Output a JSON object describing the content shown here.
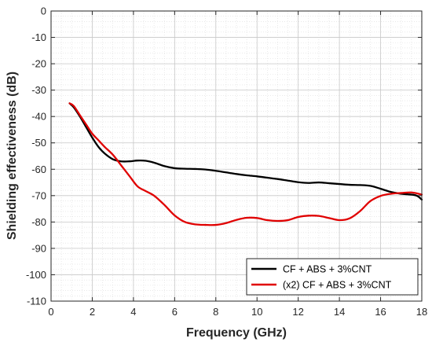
{
  "chart_data": {
    "type": "line",
    "title": "",
    "xlabel": "Frequency (GHz)",
    "ylabel": "Shielding effectiveness (dB)",
    "xlim": [
      0,
      18
    ],
    "ylim": [
      -110,
      0
    ],
    "xticks": [
      0,
      2,
      4,
      6,
      8,
      10,
      12,
      14,
      16,
      18
    ],
    "yticks": [
      0,
      -10,
      -20,
      -30,
      -40,
      -50,
      -60,
      -70,
      -80,
      -90,
      -100,
      -110
    ],
    "grid": true,
    "minor_grid": true,
    "legend_position": "bottom-right",
    "series": [
      {
        "name": "CF + ABS + 3%CNT",
        "color": "#000000",
        "x": [
          0.9,
          1.1,
          1.4,
          1.7,
          2.0,
          2.3,
          2.6,
          3.0,
          3.4,
          3.8,
          4.2,
          4.6,
          5.0,
          5.5,
          6.0,
          6.5,
          7.0,
          7.5,
          8.0,
          8.5,
          9.0,
          9.5,
          10.0,
          10.5,
          11.0,
          11.5,
          12.0,
          12.5,
          13.0,
          13.5,
          14.0,
          14.5,
          15.0,
          15.5,
          16.0,
          16.5,
          17.0,
          17.3,
          17.6,
          17.8,
          18.0
        ],
        "y": [
          -35,
          -36.5,
          -40,
          -44,
          -48,
          -51.5,
          -54,
          -56.2,
          -57,
          -57,
          -56.7,
          -56.8,
          -57.5,
          -58.8,
          -59.6,
          -59.8,
          -59.9,
          -60.1,
          -60.6,
          -61.2,
          -61.8,
          -62.3,
          -62.7,
          -63.2,
          -63.7,
          -64.3,
          -64.9,
          -65.2,
          -65,
          -65.3,
          -65.6,
          -65.9,
          -66,
          -66.3,
          -67.4,
          -68.6,
          -69.3,
          -69.5,
          -69.7,
          -70.2,
          -71.5
        ]
      },
      {
        "name": "(x2) CF + ABS + 3%CNT",
        "color": "#e00000",
        "x": [
          0.9,
          1.1,
          1.4,
          1.7,
          2.0,
          2.3,
          2.6,
          3.0,
          3.4,
          3.8,
          4.2,
          4.6,
          5.0,
          5.5,
          6.0,
          6.5,
          7.0,
          7.5,
          8.0,
          8.5,
          9.0,
          9.5,
          10.0,
          10.5,
          11.0,
          11.5,
          12.0,
          12.5,
          13.0,
          13.5,
          14.0,
          14.5,
          15.0,
          15.5,
          16.0,
          16.5,
          17.0,
          17.5,
          18.0
        ],
        "y": [
          -35,
          -36,
          -39.5,
          -43,
          -46.5,
          -49,
          -51.5,
          -54.5,
          -58.5,
          -62.5,
          -66.5,
          -68.3,
          -70,
          -73.5,
          -77.5,
          -80,
          -80.9,
          -81.1,
          -81.1,
          -80.4,
          -79.2,
          -78.4,
          -78.5,
          -79.3,
          -79.6,
          -79.3,
          -78.1,
          -77.6,
          -77.7,
          -78.5,
          -79.3,
          -78.6,
          -75.9,
          -72.1,
          -70.1,
          -69.3,
          -69,
          -68.8,
          -69.6
        ]
      }
    ]
  }
}
